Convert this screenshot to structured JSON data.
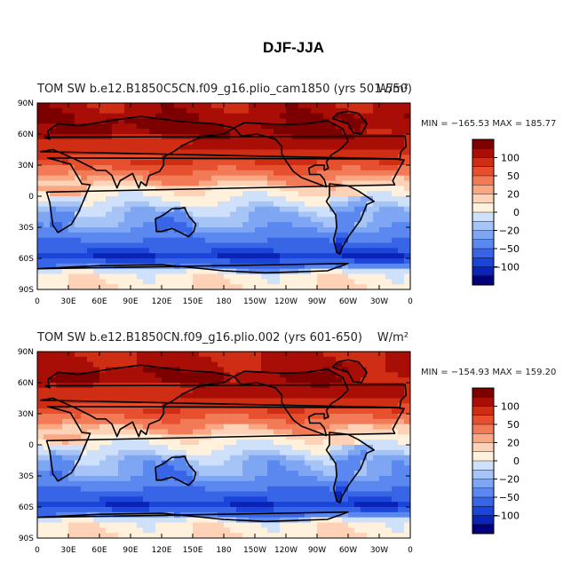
{
  "figure": {
    "title": "DJF-JJA"
  },
  "colors": {
    "scale": [
      "#02007a",
      "#0b24b7",
      "#1a45d8",
      "#3865e6",
      "#5a88ee",
      "#7fa6f3",
      "#a7c4f6",
      "#cfe0fb",
      "#fff1dc",
      "#fdd2b6",
      "#f9a883",
      "#f27a56",
      "#e6502f",
      "#cf2d14",
      "#a80e06",
      "#7c0000"
    ],
    "land_outline": "#000000",
    "frame": "#000000"
  },
  "chart_data": [
    {
      "type": "heatmap",
      "overlapping_title_left": "TOM SW b.e12.B1850C5CN.f09_g16.plio_cam1850 (yrs 501-550)",
      "units": "W/m²",
      "stats": "MIN = −165.53 MAX = 185.77",
      "min": -165.53,
      "max": 185.77,
      "x_ticks": [
        "0",
        "30E",
        "60E",
        "90E",
        "120E",
        "150E",
        "180",
        "150W",
        "120W",
        "90W",
        "60W",
        "30W",
        "0"
      ],
      "y_ticks": [
        "90N",
        "60N",
        "30N",
        "0",
        "30S",
        "60S",
        "90S"
      ],
      "colorbar_labels": [
        "100",
        "50",
        "20",
        "0",
        "−20",
        "−50",
        "−100"
      ],
      "levels": [
        -130,
        -110,
        -100,
        -80,
        -60,
        -50,
        -40,
        -20,
        0,
        20,
        30,
        50,
        70,
        100,
        120
      ],
      "zonal_profile": [
        {
          "lat": 90,
          "value": 105
        },
        {
          "lat": 75,
          "value": 115
        },
        {
          "lat": 60,
          "value": 105
        },
        {
          "lat": 45,
          "value": 85
        },
        {
          "lat": 30,
          "value": 45
        },
        {
          "lat": 15,
          "value": 8
        },
        {
          "lat": 0,
          "value": -12
        },
        {
          "lat": -15,
          "value": -45
        },
        {
          "lat": -30,
          "value": -55
        },
        {
          "lat": -45,
          "value": -85
        },
        {
          "lat": -60,
          "value": -115
        },
        {
          "lat": -75,
          "value": -10
        },
        {
          "lat": -90,
          "value": -5
        }
      ]
    },
    {
      "type": "heatmap",
      "overlapping_title_left": "TOM SW b.e12.B1850CN.f09_g16.plio.002 (yrs 601-650)",
      "units": "W/m²",
      "stats": "MIN = −154.93 MAX = 159.20",
      "min": -154.93,
      "max": 159.2,
      "x_ticks": [
        "0",
        "30E",
        "60E",
        "90E",
        "120E",
        "150E",
        "180",
        "150W",
        "120W",
        "90W",
        "60W",
        "30W",
        "0"
      ],
      "y_ticks": [
        "90N",
        "60N",
        "30N",
        "0",
        "30S",
        "60S",
        "90S"
      ],
      "colorbar_labels": [
        "100",
        "50",
        "20",
        "0",
        "−20",
        "−50",
        "−100"
      ],
      "levels": [
        -130,
        -110,
        -100,
        -80,
        -60,
        -50,
        -40,
        -20,
        0,
        20,
        30,
        50,
        70,
        100,
        120
      ],
      "zonal_profile": [
        {
          "lat": 90,
          "value": 100
        },
        {
          "lat": 75,
          "value": 108
        },
        {
          "lat": 60,
          "value": 100
        },
        {
          "lat": 45,
          "value": 80
        },
        {
          "lat": 30,
          "value": 42
        },
        {
          "lat": 15,
          "value": 5
        },
        {
          "lat": 0,
          "value": -15
        },
        {
          "lat": -15,
          "value": -48
        },
        {
          "lat": -30,
          "value": -55
        },
        {
          "lat": -45,
          "value": -85
        },
        {
          "lat": -60,
          "value": -112
        },
        {
          "lat": -75,
          "value": -10
        },
        {
          "lat": -90,
          "value": -5
        }
      ]
    }
  ]
}
